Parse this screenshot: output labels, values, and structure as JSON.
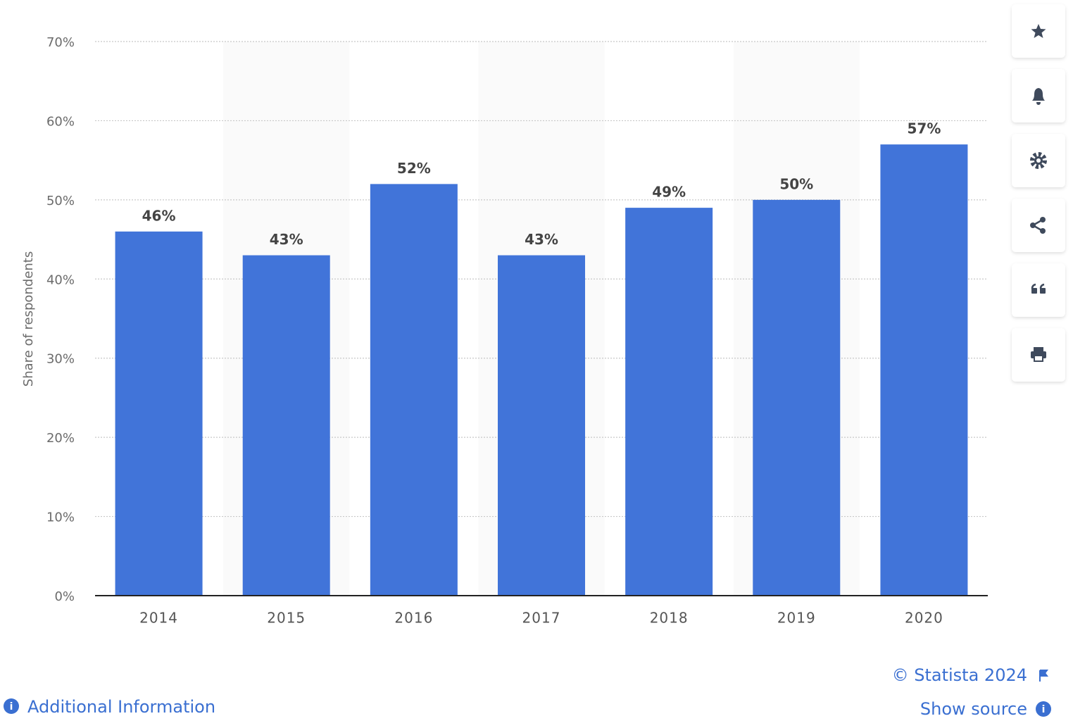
{
  "chart_data": {
    "type": "bar",
    "y_label": "Share of respondents",
    "categories": [
      "2014",
      "2015",
      "2016",
      "2017",
      "2018",
      "2019",
      "2020"
    ],
    "values": [
      46,
      43,
      52,
      43,
      49,
      50,
      57
    ],
    "value_labels": [
      "46%",
      "43%",
      "52%",
      "43%",
      "49%",
      "50%",
      "57%"
    ],
    "color": "#4174d9",
    "ylim": [
      0,
      70
    ],
    "yticks": [
      {
        "value": 0,
        "label": "0%"
      },
      {
        "value": 10,
        "label": "10%"
      },
      {
        "value": 20,
        "label": "20%"
      },
      {
        "value": 30,
        "label": "30%"
      },
      {
        "value": 40,
        "label": "40%"
      },
      {
        "value": 50,
        "label": "50%"
      },
      {
        "value": 60,
        "label": "60%"
      },
      {
        "value": 70,
        "label": "70%"
      }
    ],
    "grid": true
  },
  "footer": {
    "credit": "© Statista 2024",
    "show_source": "Show source",
    "additional_info": "Additional Information"
  }
}
